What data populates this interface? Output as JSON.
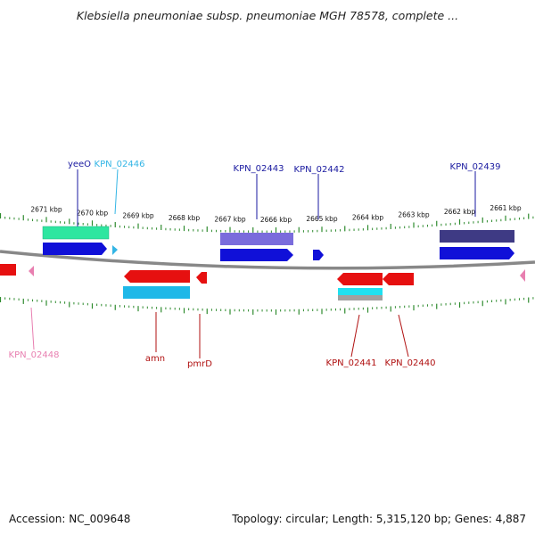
{
  "title": "Klebsiella pneumoniae subsp. pneumoniae MGH 78578, complete ...",
  "footer": {
    "accession": "Accession: NC_009648",
    "summary": "Topology: circular; Length: 5,315,120 bp; Genes: 4,887"
  },
  "colors": {
    "tick": "#2e8b2e",
    "backbone": "#888888",
    "blue_label": "#1a1aa0",
    "red_label": "#b01010",
    "cyan_label": "#33b5e5",
    "pink_label": "#e87fb0"
  },
  "ruler": {
    "unit": "kbp",
    "labels": [
      {
        "kbp": 2671,
        "text": "2671 kbp"
      },
      {
        "kbp": 2670,
        "text": "2670 kbp"
      },
      {
        "kbp": 2669,
        "text": "2669 kbp"
      },
      {
        "kbp": 2668,
        "text": "2668 kbp"
      },
      {
        "kbp": 2667,
        "text": "2667 kbp"
      },
      {
        "kbp": 2666,
        "text": "2666 kbp"
      },
      {
        "kbp": 2665,
        "text": "2665 kbp"
      },
      {
        "kbp": 2664,
        "text": "2664 kbp"
      },
      {
        "kbp": 2663,
        "text": "2663 kbp"
      },
      {
        "kbp": 2662,
        "text": "2662 kbp"
      },
      {
        "kbp": 2661,
        "text": "2661 kbp"
      }
    ]
  },
  "gene_labels": [
    {
      "name": "yeeO",
      "color": "blue"
    },
    {
      "name": "KPN_02446",
      "color": "cyan"
    },
    {
      "name": "KPN_02443",
      "color": "blue"
    },
    {
      "name": "KPN_02442",
      "color": "blue"
    },
    {
      "name": "KPN_02439",
      "color": "blue"
    },
    {
      "name": "KPN_02448",
      "color": "pink"
    },
    {
      "name": "amn",
      "color": "red"
    },
    {
      "name": "pmrD",
      "color": "red"
    },
    {
      "name": "KPN_02441",
      "color": "red"
    },
    {
      "name": "KPN_02440",
      "color": "red"
    }
  ]
}
